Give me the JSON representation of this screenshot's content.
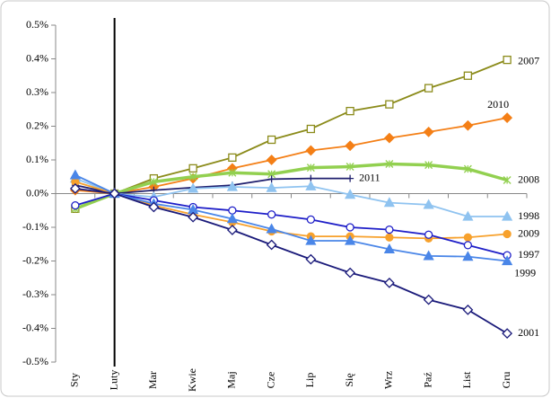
{
  "chart_data": {
    "type": "line",
    "categories": [
      "Sty",
      "Luty",
      "Mar",
      "Kwie",
      "Maj",
      "Cze",
      "Lip",
      "Się",
      "Wrz",
      "Paź",
      "List",
      "Gru"
    ],
    "ylim": [
      -0.5,
      0.5
    ],
    "yticks": [
      {
        "value": -0.5,
        "label": "-0.5%"
      },
      {
        "value": -0.4,
        "label": "-0.4%"
      },
      {
        "value": -0.3,
        "label": "-0.3%"
      },
      {
        "value": -0.2,
        "label": "-0.2%"
      },
      {
        "value": -0.1,
        "label": "-0.1%"
      },
      {
        "value": 0,
        "label": "0.0%"
      },
      {
        "value": 0.1,
        "label": "0.1%"
      },
      {
        "value": 0.2,
        "label": "0.2%"
      },
      {
        "value": 0.3,
        "label": "0.3%"
      },
      {
        "value": 0.4,
        "label": "0.4%"
      },
      {
        "value": 0.5,
        "label": "0.5%"
      }
    ],
    "series": [
      {
        "name": "2007",
        "color": "#8b8b1a",
        "marker": "square",
        "filled": false,
        "values": [
          -0.045,
          0,
          0.045,
          0.075,
          0.107,
          0.16,
          0.192,
          0.245,
          0.265,
          0.313,
          0.35,
          0.397
        ]
      },
      {
        "name": "2010",
        "color": "#f47f16",
        "marker": "diamond",
        "filled": true,
        "values": [
          0.01,
          0,
          0.02,
          0.045,
          0.075,
          0.1,
          0.128,
          0.142,
          0.165,
          0.183,
          0.202,
          0.225
        ]
      },
      {
        "name": "2008",
        "color": "#92d050",
        "marker": "star",
        "filled": true,
        "values": [
          -0.045,
          0,
          0.035,
          0.05,
          0.062,
          0.058,
          0.077,
          0.08,
          0.088,
          0.085,
          0.073,
          0.04
        ]
      },
      {
        "name": "2011",
        "color": "#1f1f6e",
        "marker": "plus",
        "filled": true,
        "values": [
          0.025,
          0,
          0.01,
          0.018,
          0.025,
          0.043,
          0.045,
          0.045,
          null,
          null,
          null,
          null
        ]
      },
      {
        "name": "1998",
        "color": "#8fc3f0",
        "marker": "triangle",
        "filled": true,
        "values": [
          0.045,
          0,
          -0.01,
          0.015,
          0.02,
          0.017,
          0.022,
          -0.003,
          -0.027,
          -0.033,
          -0.068,
          -0.068
        ]
      },
      {
        "name": "2009",
        "color": "#f7a12c",
        "marker": "circle",
        "filled": true,
        "values": [
          0.035,
          0,
          -0.035,
          -0.062,
          -0.085,
          -0.112,
          -0.127,
          -0.127,
          -0.13,
          -0.133,
          -0.13,
          -0.12
        ]
      },
      {
        "name": "1997",
        "color": "#1e1ec8",
        "marker": "circle",
        "filled": false,
        "values": [
          -0.035,
          0,
          -0.02,
          -0.04,
          -0.05,
          -0.062,
          -0.077,
          -0.1,
          -0.107,
          -0.122,
          -0.153,
          -0.183
        ]
      },
      {
        "name": "1999",
        "color": "#4a86e8",
        "marker": "triangle",
        "filled": true,
        "values": [
          0.055,
          0,
          -0.03,
          -0.048,
          -0.075,
          -0.105,
          -0.14,
          -0.14,
          -0.165,
          -0.185,
          -0.187,
          -0.2
        ]
      },
      {
        "name": "2001",
        "color": "#1a1a7a",
        "marker": "diamond",
        "filled": false,
        "values": [
          0.015,
          0,
          -0.04,
          -0.07,
          -0.108,
          -0.152,
          -0.195,
          -0.235,
          -0.265,
          -0.315,
          -0.345,
          -0.415
        ]
      }
    ]
  }
}
